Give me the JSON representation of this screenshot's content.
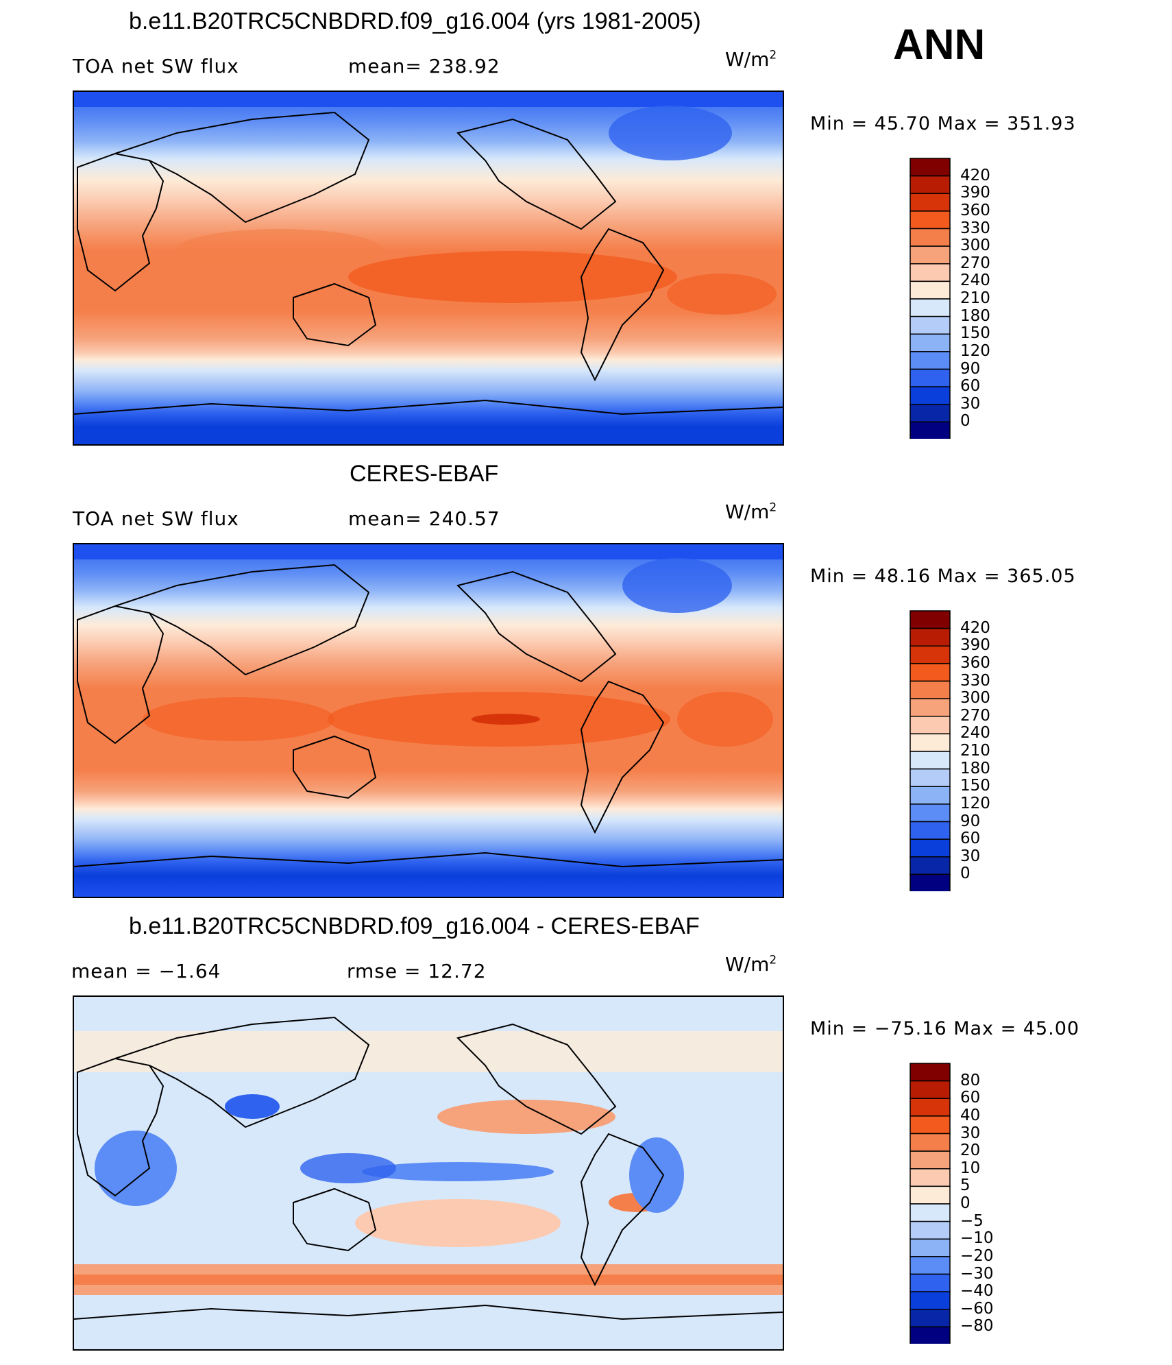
{
  "header": {
    "season": "ANN"
  },
  "panels": [
    {
      "title": "b.e11.B20TRC5CNBDRD.f09_g16.004 (yrs 1981-2005)",
      "left_label": "TOA net SW flux",
      "center_label": "mean= 238.92",
      "units_base": "W/m",
      "units_exp": "2",
      "minmax": "Min =   45.70  Max  =  351.93",
      "levels": [
        "420",
        "390",
        "360",
        "330",
        "300",
        "270",
        "240",
        "210",
        "180",
        "150",
        "120",
        "90",
        "60",
        "30",
        "0"
      ],
      "colors": [
        "#800000",
        "#b81c02",
        "#d8340a",
        "#f25a1e",
        "#f57f4a",
        "#f6a27a",
        "#fccab0",
        "#fdebd8",
        "#d7e8fb",
        "#b4cdf8",
        "#8db3f7",
        "#5c8cf5",
        "#2f63ef",
        "#0a3fdb",
        "#0826a8",
        "#000080"
      ]
    },
    {
      "title": "CERES-EBAF",
      "left_label": "TOA net SW flux",
      "center_label": "mean= 240.57",
      "units_base": "W/m",
      "units_exp": "2",
      "minmax": "Min =   48.16  Max  =  365.05",
      "levels": [
        "420",
        "390",
        "360",
        "330",
        "300",
        "270",
        "240",
        "210",
        "180",
        "150",
        "120",
        "90",
        "60",
        "30",
        "0"
      ],
      "colors": [
        "#800000",
        "#b81c02",
        "#d8340a",
        "#f25a1e",
        "#f57f4a",
        "#f6a27a",
        "#fccab0",
        "#fdebd8",
        "#d7e8fb",
        "#b4cdf8",
        "#8db3f7",
        "#5c8cf5",
        "#2f63ef",
        "#0a3fdb",
        "#0826a8",
        "#000080"
      ]
    },
    {
      "title": "b.e11.B20TRC5CNBDRD.f09_g16.004 - CERES-EBAF",
      "left_label": "mean =    −1.64",
      "center_label": "rmse =    12.72",
      "units_base": "W/m",
      "units_exp": "2",
      "minmax": "Min  = −75.16  Max  =    45.00",
      "levels": [
        "80",
        "60",
        "40",
        "30",
        "20",
        "10",
        "5",
        "0",
        "−5",
        "−10",
        "−20",
        "−30",
        "−40",
        "−60",
        "−80"
      ],
      "colors": [
        "#800000",
        "#b81c02",
        "#d8340a",
        "#f25a1e",
        "#f57f4a",
        "#f6a27a",
        "#fccab0",
        "#fdebd8",
        "#d7e8fb",
        "#b4cdf8",
        "#8db3f7",
        "#5c8cf5",
        "#2f63ef",
        "#0a3fdb",
        "#0826a8",
        "#000080"
      ]
    }
  ],
  "chart_data": [
    {
      "type": "heatmap",
      "title": "b.e11.B20TRC5CNBDRD.f09_g16.004 (yrs 1981-2005)",
      "variable": "TOA net SW flux",
      "mean": 238.92,
      "min": 45.7,
      "max": 351.93,
      "units": "W/m2",
      "colorbar_levels": [
        0,
        30,
        60,
        90,
        120,
        150,
        180,
        210,
        240,
        270,
        300,
        330,
        360,
        390,
        420
      ]
    },
    {
      "type": "heatmap",
      "title": "CERES-EBAF",
      "variable": "TOA net SW flux",
      "mean": 240.57,
      "min": 48.16,
      "max": 365.05,
      "units": "W/m2",
      "colorbar_levels": [
        0,
        30,
        60,
        90,
        120,
        150,
        180,
        210,
        240,
        270,
        300,
        330,
        360,
        390,
        420
      ]
    },
    {
      "type": "heatmap",
      "title": "b.e11.B20TRC5CNBDRD.f09_g16.004 - CERES-EBAF",
      "mean": -1.64,
      "rmse": 12.72,
      "min": -75.16,
      "max": 45.0,
      "units": "W/m2",
      "colorbar_levels": [
        -80,
        -60,
        -40,
        -30,
        -20,
        -10,
        -5,
        0,
        5,
        10,
        20,
        30,
        40,
        60,
        80
      ]
    }
  ]
}
